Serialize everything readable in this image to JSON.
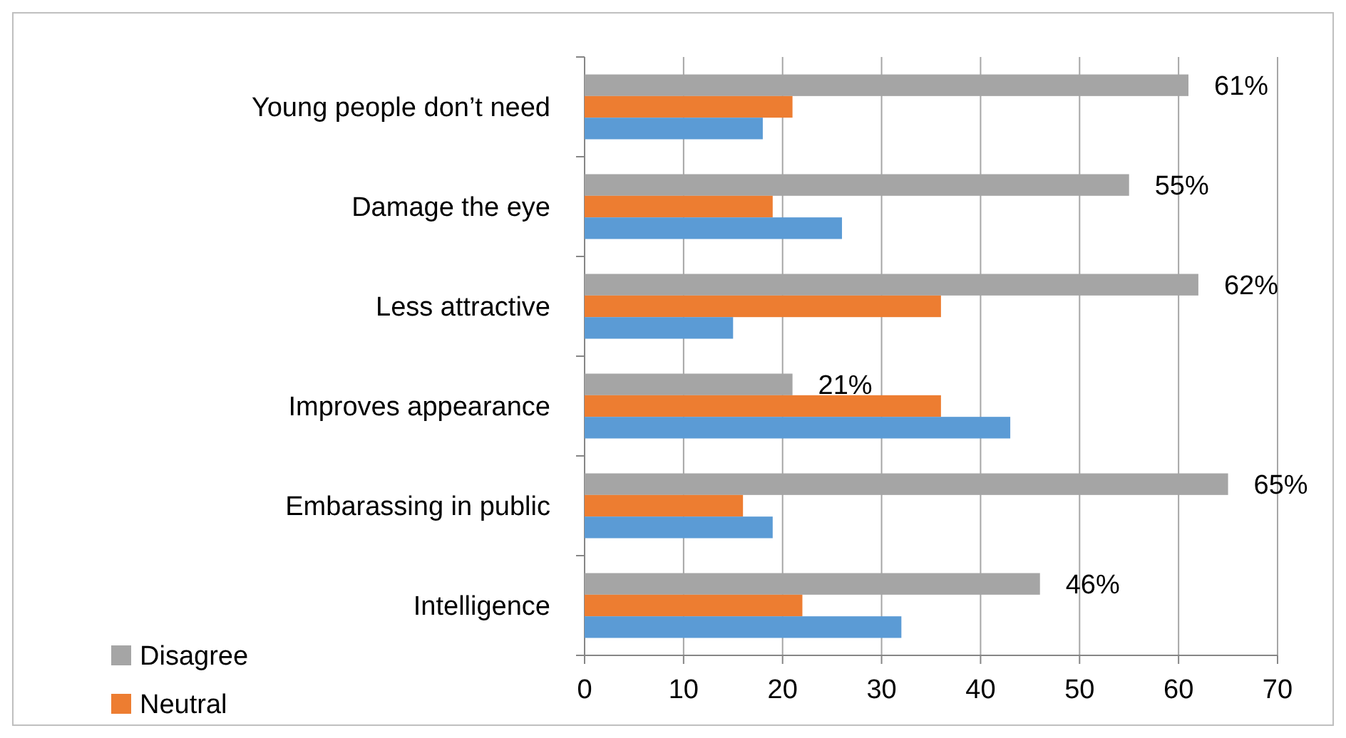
{
  "chart_data": {
    "type": "bar",
    "orientation": "horizontal",
    "categories": [
      "Young people don’t need",
      "Damage the eye",
      "Less attractive ",
      "Improves appearance",
      "Embarassing in public",
      "Intelligence"
    ],
    "series": [
      {
        "name": "Disagree",
        "color": "#a5a5a5",
        "values": [
          61,
          55,
          62,
          21,
          65,
          46
        ],
        "value_labels": [
          "61%",
          "55%",
          "62%",
          "21%",
          "65%",
          "46%"
        ]
      },
      {
        "name": "Neutral",
        "color": "#ed7d31",
        "values": [
          21,
          19,
          36,
          36,
          16,
          22
        ]
      },
      {
        "color": "#5b9bd5",
        "values": [
          18,
          26,
          15,
          43,
          19,
          32
        ]
      }
    ],
    "xlim": [
      0,
      70
    ],
    "xticks": [
      0,
      10,
      20,
      30,
      40,
      50,
      60,
      70
    ],
    "grid": "x",
    "legend": "bottom left"
  }
}
